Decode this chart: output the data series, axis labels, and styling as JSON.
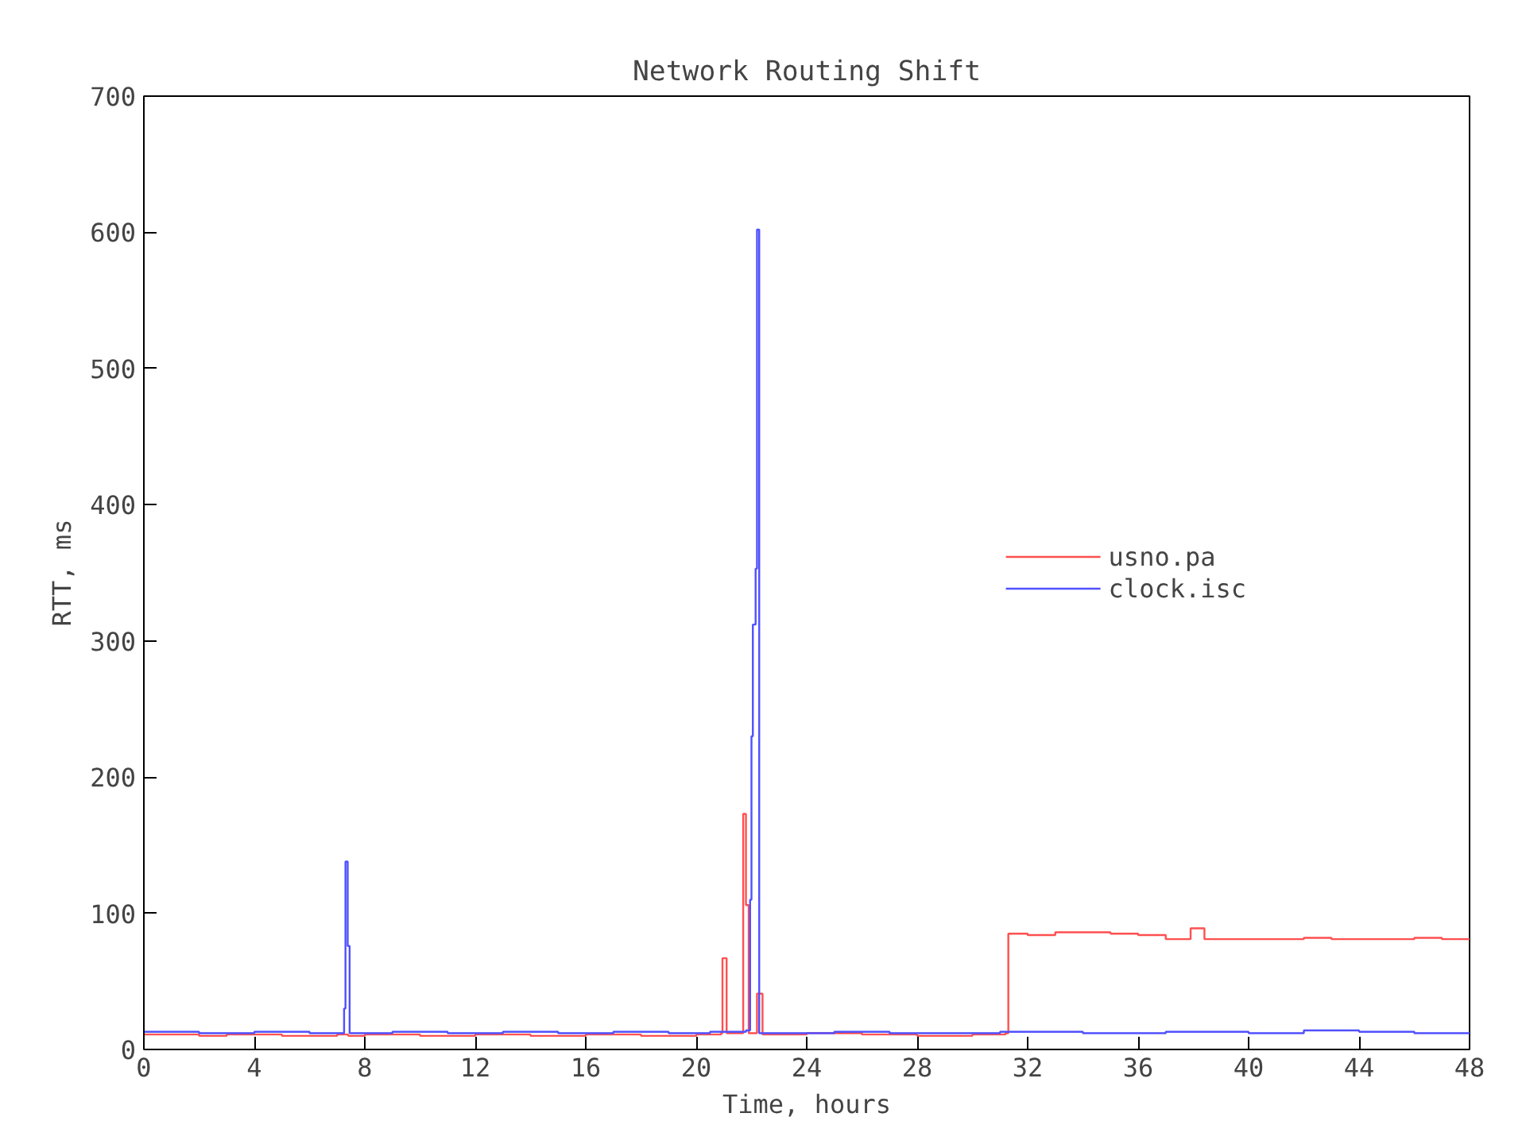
{
  "chart_data": {
    "type": "step",
    "title": "Network Routing Shift",
    "xlabel": "Time, hours",
    "ylabel": "RTT, ms",
    "xlim": [
      0,
      48
    ],
    "ylim": [
      0,
      700
    ],
    "xticks": [
      0,
      4,
      8,
      12,
      16,
      20,
      24,
      28,
      32,
      36,
      40,
      44,
      48
    ],
    "yticks": [
      0,
      100,
      200,
      300,
      400,
      500,
      600,
      700
    ],
    "grid": false,
    "legend": "right",
    "series": [
      {
        "name": "usno.pa",
        "color": "#ff5050",
        "x": [
          0,
          2,
          3,
          5,
          7,
          7.4,
          8,
          10,
          12,
          14,
          16,
          18,
          20,
          20.9,
          20.95,
          21.1,
          21.6,
          21.7,
          21.8,
          21.9,
          22.2,
          22.4,
          24,
          26,
          28,
          30,
          31.2,
          31.3,
          32,
          33,
          34,
          35,
          36,
          37,
          37.9,
          38.4,
          42,
          43,
          46,
          47,
          48
        ],
        "values": [
          11,
          10,
          11,
          10,
          11,
          10,
          11,
          10,
          11,
          10,
          11,
          10,
          11,
          12,
          67,
          12,
          12,
          173,
          106,
          12,
          41,
          11,
          12,
          11,
          10,
          11,
          12,
          85,
          84,
          86,
          86,
          85,
          84,
          81,
          89,
          81,
          82,
          81,
          82,
          81,
          81
        ]
      },
      {
        "name": "clock.isc",
        "color": "#5050ff",
        "x": [
          0,
          2,
          4,
          6,
          7.25,
          7.3,
          7.38,
          7.45,
          9,
          11,
          13,
          15,
          17,
          19,
          20.5,
          21.8,
          21.95,
          22.0,
          22.05,
          22.15,
          22.2,
          22.28,
          25,
          27,
          29,
          31,
          34,
          37,
          40,
          42,
          44,
          46,
          48
        ],
        "values": [
          13,
          12,
          13,
          12,
          30,
          138,
          76,
          12,
          13,
          12,
          13,
          12,
          13,
          12,
          13,
          14,
          110,
          230,
          312,
          353,
          602,
          12,
          13,
          12,
          12,
          13,
          12,
          13,
          12,
          14,
          13,
          12,
          13
        ]
      }
    ]
  }
}
